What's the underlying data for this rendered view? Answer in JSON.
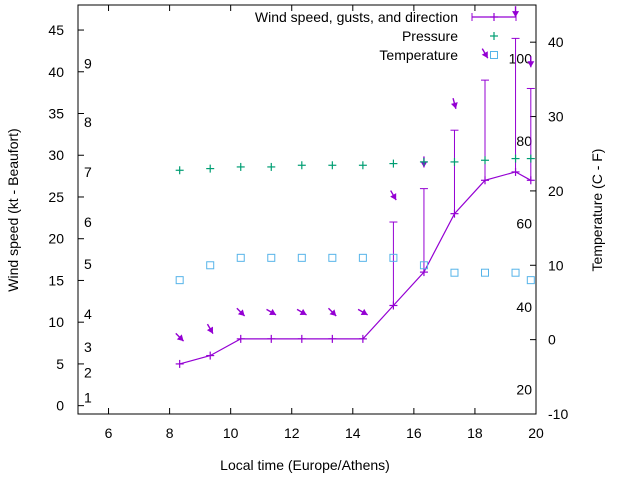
{
  "chart_data": {
    "type": "line",
    "title": "",
    "xlabel": "Local time (Europe/Athens)",
    "ylabel_left": "Wind speed (kt - Beaufort)",
    "ylabel_right": "Temperature (C - F)",
    "xlim": [
      5,
      20
    ],
    "ylim_left": [
      -1,
      48
    ],
    "ylim_right": [
      -10,
      45
    ],
    "x_ticks": [
      6,
      8,
      10,
      12,
      14,
      16,
      18,
      20
    ],
    "y_left_ticks": [
      0,
      5,
      10,
      15,
      20,
      25,
      30,
      35,
      40,
      45
    ],
    "y_right_ticks": [
      -10,
      0,
      10,
      20,
      30,
      40
    ],
    "beaufort_labels": [
      {
        "label": "1",
        "kt": 1
      },
      {
        "label": "2",
        "kt": 4
      },
      {
        "label": "3",
        "kt": 7
      },
      {
        "label": "4",
        "kt": 11
      },
      {
        "label": "5",
        "kt": 17
      },
      {
        "label": "6",
        "kt": 22
      },
      {
        "label": "7",
        "kt": 28
      },
      {
        "label": "8",
        "kt": 34
      },
      {
        "label": "9",
        "kt": 41
      }
    ],
    "fahrenheit_labels": [
      {
        "label": "20",
        "c": -6.7
      },
      {
        "label": "40",
        "c": 4.4
      },
      {
        "label": "60",
        "c": 15.6
      },
      {
        "label": "80",
        "c": 26.7
      },
      {
        "label": "100",
        "c": 37.8
      }
    ],
    "legend_position": "top-right",
    "series": [
      {
        "name": "Wind speed, gusts, and direction",
        "color": "#9400d3",
        "x": [
          8.33,
          9.33,
          10.33,
          11.33,
          12.33,
          13.33,
          14.33,
          15.33,
          16.33,
          17.33,
          18.33,
          19.33,
          19.83
        ],
        "speed": [
          5,
          6,
          8,
          8,
          8,
          8,
          8,
          12,
          16,
          23,
          27,
          28,
          27
        ],
        "gust": [
          null,
          null,
          null,
          null,
          null,
          null,
          null,
          22,
          26,
          33,
          39,
          44,
          38
        ],
        "direction_from_deg": [
          315,
          330,
          315,
          300,
          300,
          315,
          300,
          330,
          0,
          345,
          330,
          0,
          0
        ]
      },
      {
        "name": "Pressure",
        "color": "#009e73",
        "x": [
          8.33,
          9.33,
          10.33,
          11.33,
          12.33,
          13.33,
          14.33,
          15.33,
          16.33,
          17.33,
          18.33,
          19.33,
          19.83
        ],
        "y_wind_axis": [
          28.2,
          28.4,
          28.6,
          28.6,
          28.8,
          28.8,
          28.8,
          29.0,
          29.2,
          29.2,
          29.4,
          29.6,
          29.6
        ]
      },
      {
        "name": "Temperature",
        "color": "#56b4e9",
        "x": [
          8.33,
          9.33,
          10.33,
          11.33,
          12.33,
          13.33,
          14.33,
          15.33,
          16.33,
          17.33,
          18.33,
          19.33,
          19.83
        ],
        "y": [
          8,
          10,
          11,
          11,
          11,
          11,
          11,
          11,
          10,
          9,
          9,
          9,
          8
        ]
      }
    ]
  }
}
